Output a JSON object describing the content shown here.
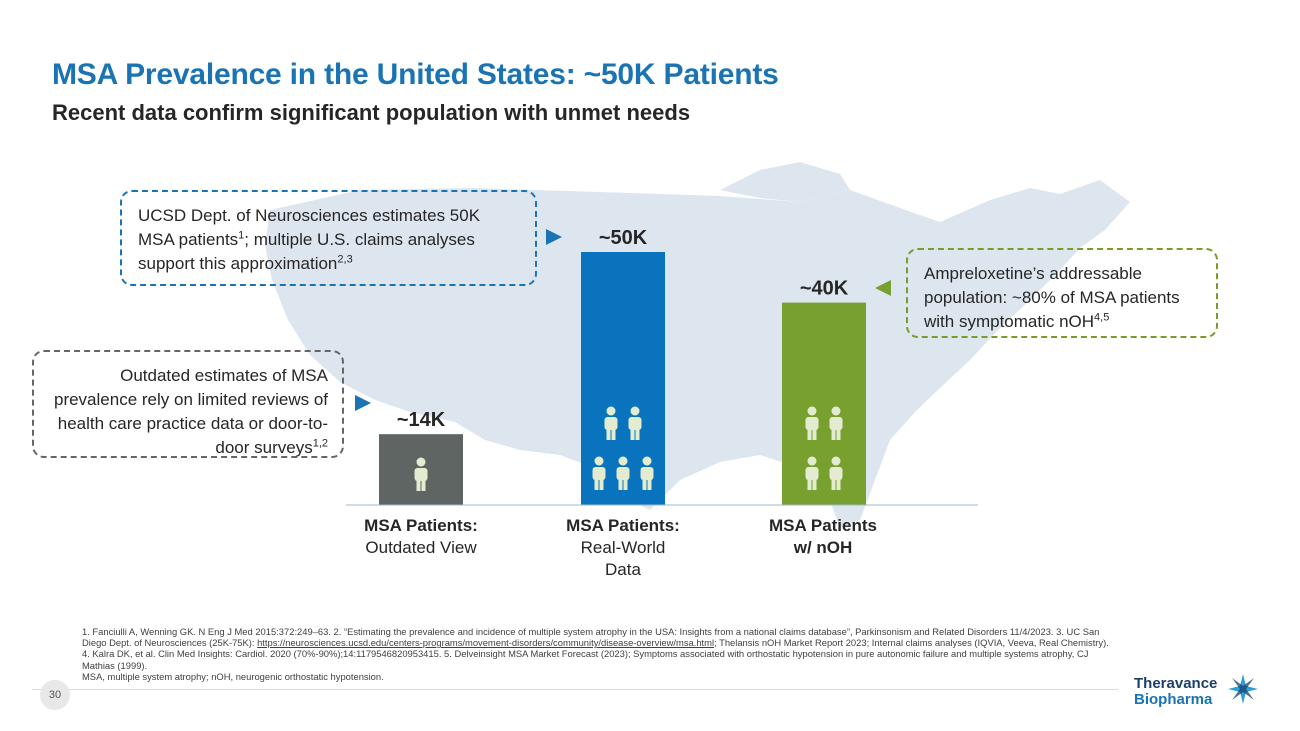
{
  "slide": {
    "title": "MSA Prevalence in the United States: ~50K Patients",
    "subtitle": "Recent data confirm significant population with unmet needs",
    "page_number": "30"
  },
  "colors": {
    "title": "#1a74b4",
    "outdated": "#5e6563",
    "real_world": "#0a73bd",
    "noh": "#77a02f",
    "map": "#dde6ef",
    "person_light": "#e3ecd0"
  },
  "chart_data": {
    "type": "bar",
    "title": "MSA Prevalence in the United States: ~50K Patients",
    "xlabel": "",
    "ylabel": "",
    "ylim": [
      0,
      50000
    ],
    "categories": [
      {
        "bold": "MSA Patients:",
        "rest": "Outdated View"
      },
      {
        "bold": "MSA Patients:",
        "rest": "Real-World Data"
      },
      {
        "bold": "MSA Patients w/ nOH",
        "rest": ""
      }
    ],
    "values": [
      14000,
      50000,
      40000
    ],
    "data_labels": [
      "~14K",
      "~50K",
      "~40K"
    ],
    "people_icons": [
      1,
      5,
      4
    ]
  },
  "callouts": {
    "ucsd": {
      "text_a": "UCSD Dept. of Neurosciences estimates 50K MSA patients",
      "sup_a": "1",
      "text_b": "; multiple U.S. claims analyses support this approximation",
      "sup_b": "2,3"
    },
    "outdated": {
      "text": "Outdated estimates of MSA prevalence rely on limited reviews of health care practice data or door-to-door surveys",
      "sup": "1,2"
    },
    "ampreloxetine": {
      "text": "Ampreloxetine’s addressable population: ~80% of MSA patients with symptomatic nOH",
      "sup": "4,5"
    }
  },
  "footnotes": {
    "part1": "1. Fanciulli A, Wenning GK. N Eng J Med 2015:372:249–63. 2. “Estimating the prevalence and incidence of multiple system atrophy in the USA: Insights from a national claims database”, Parkinsonism and Related Disorders 11/4/2023. 3. UC San Diego Dept. of Neurosciences (25K-75K): ",
    "link": "https://neurosciences.ucsd.edu/centers-programs/movement-disorders/community/disease-overview/msa.html",
    "part2": "; Thelansis nOH Market Report 2023; Internal claims analyses (IQVIA, Veeva, Real Chemistry). 4. Kalra DK, et al. Clin Med Insights: Cardiol. 2020 (70%-90%);14:1179546820953415.  5. Delveinsight MSA Market Forecast (2023); Symptoms associated with orthostatic hypotension in pure autonomic failure and multiple systems atrophy, CJ Mathias (1999).",
    "abbreviations": "MSA, multiple system atrophy; nOH, neurogenic orthostatic hypotension."
  },
  "logo": {
    "line1": "Theravance",
    "line2": "Biopharma",
    "icon": "star-logo-icon"
  }
}
